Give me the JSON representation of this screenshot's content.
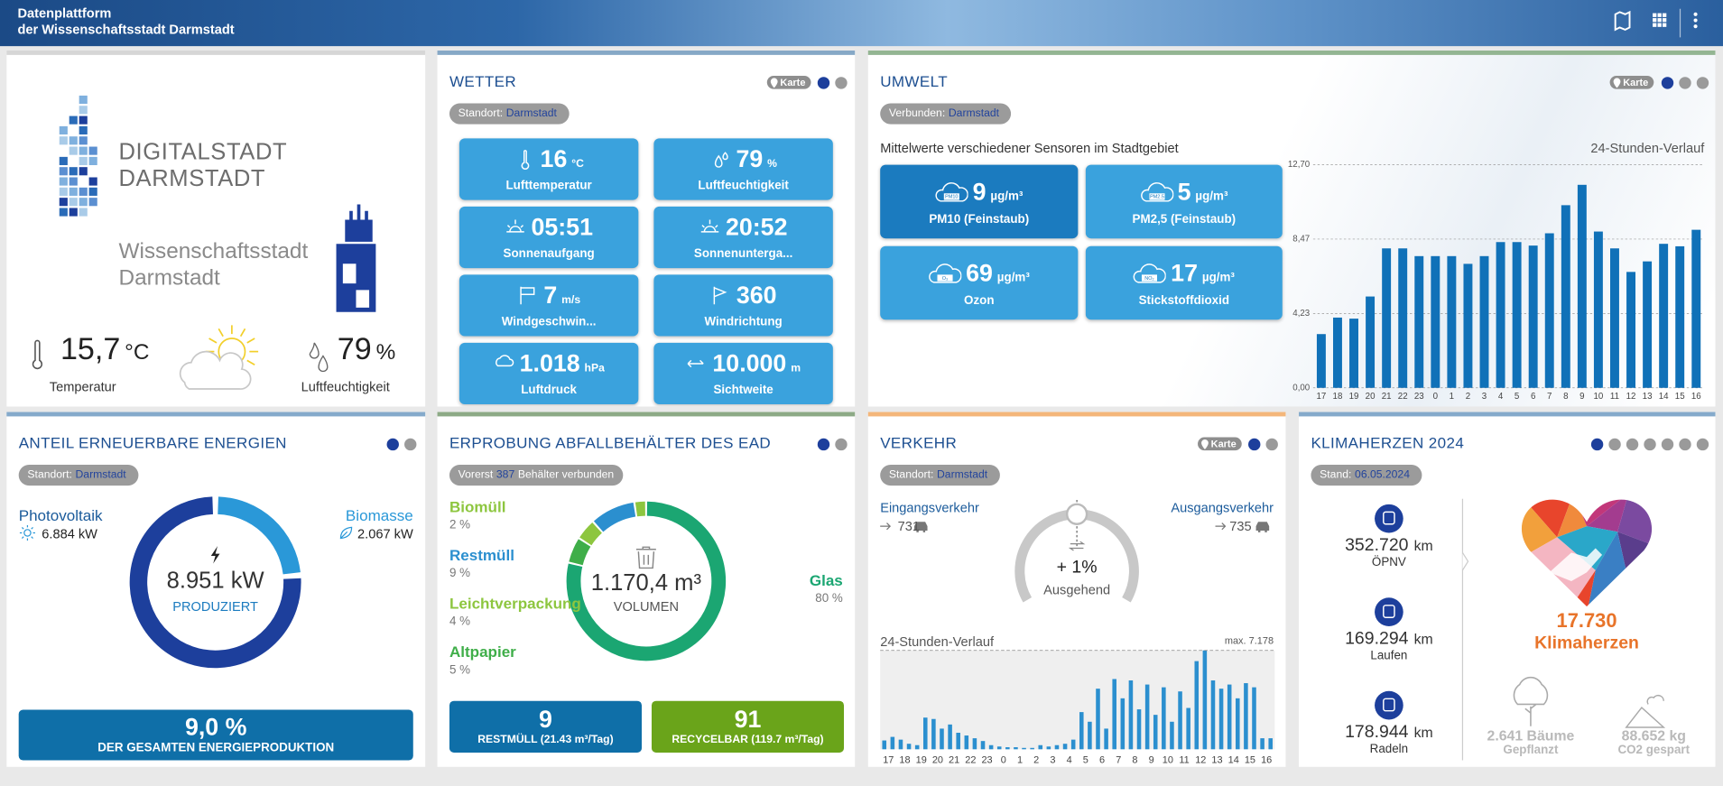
{
  "header": {
    "title": [
      "Datenplattform",
      "der Wissenschaftsstadt Darmstadt"
    ]
  },
  "logo": {
    "brand": [
      "DIGITALSTADT",
      "DARMSTADT"
    ],
    "city": [
      "Wissenschaftsstadt",
      "Darmstadt"
    ],
    "temperature": {
      "value": "15,7",
      "unit": "°C",
      "label": "Temperatur"
    },
    "humidity": {
      "value": "79",
      "unit": "%",
      "label": "Luftfeuchtigkeit"
    }
  },
  "wetter": {
    "title": "WETTER",
    "map_button": "Karte",
    "location_label": "Standort:",
    "location": "Darmstadt",
    "tiles": [
      {
        "value": "16",
        "unit": "°C",
        "label": "Lufttemperatur"
      },
      {
        "value": "79",
        "unit": "%",
        "label": "Luftfeuchtigkeit"
      },
      {
        "value": "05:51",
        "label": "Sonnenaufgang"
      },
      {
        "value": "20:52",
        "label": "Sonnenunterga..."
      },
      {
        "value": "7",
        "unit": "m/s",
        "label": "Windgeschwin..."
      },
      {
        "value": "360",
        "label": "Windrichtung"
      },
      {
        "value": "1.018",
        "unit": "hPa",
        "label": "Luftdruck"
      },
      {
        "value": "10.000",
        "unit": "m",
        "label": "Sichtweite"
      }
    ]
  },
  "umwelt": {
    "title": "UMWELT",
    "map_button": "Karte",
    "location_label": "Verbunden:",
    "location": "Darmstadt",
    "subtitle": "Mittelwerte verschiedener Sensoren im Stadtgebiet",
    "tiles": [
      {
        "icon": "PM10",
        "value": "9",
        "unit": "µg/m³",
        "label": "PM10 (Feinstaub)"
      },
      {
        "icon": "PM2.5",
        "value": "5",
        "unit": "µg/m³",
        "label": "PM2,5 (Feinstaub)"
      },
      {
        "icon": "O₃",
        "value": "69",
        "unit": "µg/m³",
        "label": "Ozon"
      },
      {
        "icon": "NO₂",
        "value": "17",
        "unit": "µg/m³",
        "label": "Stickstoffdioxid"
      }
    ]
  },
  "energie": {
    "title": "ANTEIL ERNEUERBARE ENERGIEN",
    "location_label": "Standort:",
    "location": "Darmstadt",
    "share": "9,0 %",
    "share_label": "DER GESAMTEN ENERGIEPRODUKTION"
  },
  "abfall": {
    "title": "ERPROBUNG ABFALLBEHÄLTER DES EAD",
    "connected": [
      "Vorerst",
      "387",
      "Behälter verbunden"
    ],
    "residual": "9",
    "residual_label": "RESTMÜLL (21.43 m³/Tag)",
    "recyclable": "91",
    "recyclable_label": "RECYCELBAR (119.7 m³/Tag)"
  },
  "verkehr": {
    "title": "VERKEHR",
    "map_button": "Karte",
    "location_label": "Standort:",
    "location": "Darmstadt",
    "inbound_label": "Eingangsverkehr",
    "inbound": "731",
    "outbound_label": "Ausgangsverkehr",
    "outbound": "735",
    "change": "+ 1%",
    "direction": "Ausgehend"
  },
  "klima": {
    "title": "KLIMAHERZEN 2024",
    "date_label": "Stand:",
    "date": "06.05.2024",
    "activities": [
      {
        "value": "352.720",
        "unit": "km",
        "label": "ÖPNV"
      },
      {
        "value": "169.294",
        "unit": "km",
        "label": "Laufen"
      },
      {
        "value": "178.944",
        "unit": "km",
        "label": "Radeln"
      }
    ],
    "hearts": "17.730",
    "hearts_label": "Klimaherzen",
    "trees": "2.641 Bäume",
    "trees_label": "Gepflanzt",
    "co2": "88.652 kg",
    "co2_label": "CO2 gespart"
  },
  "chart_data": [
    {
      "type": "bar",
      "title": "24-Stunden-Verlauf",
      "color": "#1071b8",
      "categories": [
        "17",
        "18",
        "19",
        "20",
        "21",
        "22",
        "23",
        "0",
        "1",
        "2",
        "3",
        "4",
        "5",
        "6",
        "7",
        "8",
        "9",
        "10",
        "11",
        "12",
        "13",
        "14",
        "15",
        "16"
      ],
      "values": [
        3.06,
        4.0,
        3.94,
        5.2,
        7.94,
        7.94,
        7.5,
        7.5,
        7.5,
        7.06,
        7.5,
        8.3,
        8.3,
        8.1,
        8.8,
        10.4,
        11.56,
        8.9,
        7.94,
        6.6,
        7.2,
        8.2,
        8.06,
        9.0
      ],
      "ylim": [
        0,
        12.7
      ],
      "yticks": [
        {
          "value": 0,
          "label": "0,00"
        },
        {
          "value": 4.23,
          "label": "4,23"
        },
        {
          "value": 8.47,
          "label": "8,47"
        },
        {
          "value": 12.7,
          "label": "12,70"
        }
      ],
      "grid": true
    },
    {
      "type": "donut",
      "categories": [
        "Photovoltaik",
        "Biomasse"
      ],
      "values": [
        6884,
        2067
      ],
      "value_labels": [
        "6.884 kW",
        "2.067 kW"
      ],
      "colors": [
        "#1d3f9c",
        "#2a98d8"
      ],
      "total_label": "8.951 kW",
      "center_label": "PRODUZIERT"
    },
    {
      "type": "donut",
      "categories": [
        "Biomüll",
        "Restmüll",
        "Leichtverpackung",
        "Altpapier",
        "Glas"
      ],
      "values": [
        2,
        9,
        4,
        5,
        80
      ],
      "value_labels": [
        "2 %",
        "9 %",
        "4 %",
        "5 %",
        "80 %"
      ],
      "colors": [
        "#8dc63f",
        "#2b8fcf",
        "#8dc63f",
        "#3fae49",
        "#1ba672"
      ],
      "total_label": "1.170,4 m³",
      "center_label": "VOLUMEN"
    },
    {
      "type": "bar",
      "title": "24-Stunden-Verlauf",
      "color": "#2b8fcf",
      "max_label": "max. 7.178",
      "ylim": [
        0,
        7178
      ],
      "categories": [
        "17",
        null,
        "18",
        null,
        "19",
        null,
        "20",
        null,
        "21",
        null,
        "22",
        null,
        "23",
        null,
        "0",
        null,
        "1",
        null,
        "2",
        null,
        "3",
        null,
        "4",
        null,
        "5",
        null,
        "6",
        null,
        "7",
        null,
        "8",
        null,
        "9",
        null,
        "10",
        null,
        "11",
        null,
        "12",
        null,
        "13",
        null,
        "14",
        null,
        "15",
        null,
        "16",
        null
      ],
      "values": [
        640,
        900,
        700,
        400,
        300,
        2300,
        2200,
        1500,
        1800,
        1200,
        1000,
        800,
        600,
        300,
        200,
        150,
        150,
        100,
        100,
        300,
        200,
        300,
        400,
        700,
        2700,
        2000,
        4400,
        1500,
        5100,
        3700,
        5000,
        2900,
        4700,
        2500,
        4500,
        2000,
        4200,
        3000,
        6400,
        7178,
        5000,
        4400,
        4700,
        3700,
        4800,
        4500,
        800,
        800
      ]
    }
  ]
}
